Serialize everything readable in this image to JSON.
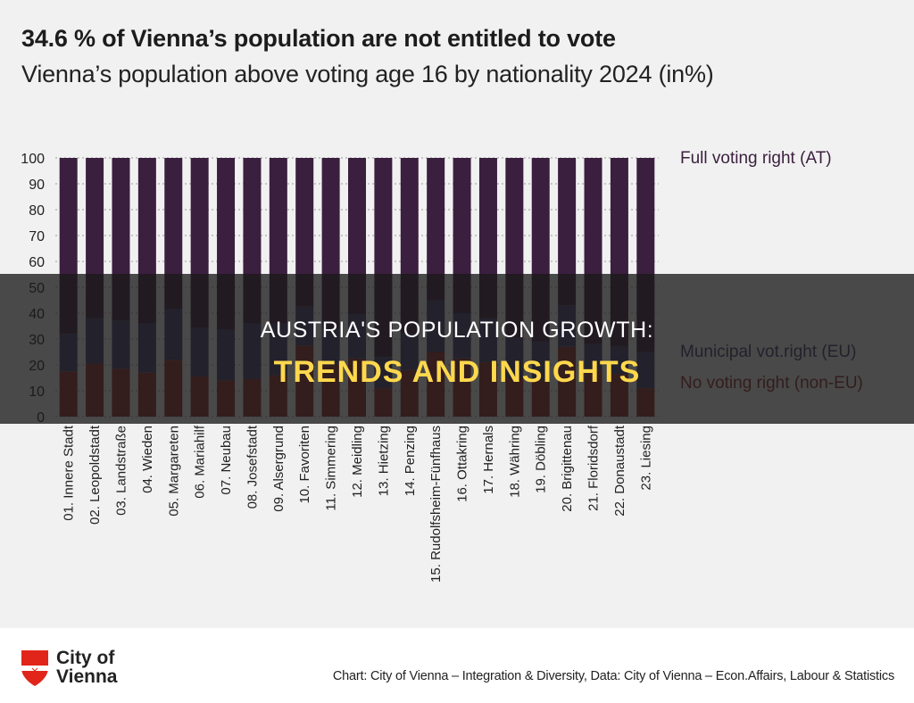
{
  "chart_data": {
    "type": "bar",
    "stacked": true,
    "title": "34.6 % of Vienna’s population are not entitled to vote",
    "subtitle": "Vienna’s population above voting age 16 by nationality 2024 (in%)",
    "ylim": [
      0,
      100
    ],
    "yticks": [
      0,
      10,
      20,
      30,
      40,
      50,
      60,
      70,
      80,
      90,
      100
    ],
    "grid": true,
    "categories": [
      "01. Innere Stadt",
      "02. Leopoldstadt",
      "03. Landstraße",
      "04. Wieden",
      "05. Margareten",
      "06. Mariahilf",
      "07. Neubau",
      "08. Josefstadt",
      "09. Alsergrund",
      "10. Favoriten",
      "11. Simmering",
      "12. Meidling",
      "13. Hietzing",
      "14. Penzing",
      "15. Rudolfsheim-Fünfhaus",
      "16. Ottakring",
      "17. Hernals",
      "18. Währing",
      "19. Döbling",
      "20. Brigittenau",
      "21. Floridsdorf",
      "22. Donaustadt",
      "23. Liesing"
    ],
    "series": [
      {
        "name": "No voting right (non-EU)",
        "color": "#8e2b2b",
        "values": [
          17.5,
          20.5,
          18.5,
          17,
          22,
          15.5,
          14,
          14.5,
          16,
          27.5,
          20,
          22.5,
          11,
          18,
          25,
          22.5,
          21,
          15,
          14,
          27,
          18,
          16.5,
          11
        ]
      },
      {
        "name": "Municipal vot.right (EU)",
        "color": "#433e6e",
        "values": [
          14.5,
          17.5,
          18.5,
          19,
          19.5,
          19,
          19.5,
          21.5,
          20,
          15,
          14,
          17,
          12,
          14,
          20,
          17.5,
          17,
          15.5,
          15,
          16,
          10,
          10.5,
          14
        ]
      },
      {
        "name": "Full voting right (AT)",
        "color": "#3b1f3e",
        "values": [
          68,
          62,
          63,
          64,
          58.5,
          65.5,
          66.5,
          64,
          64,
          57.5,
          66,
          60.5,
          77,
          68,
          55,
          60,
          62,
          69.5,
          71,
          57,
          72,
          73,
          75
        ]
      }
    ],
    "legend_position": "right"
  },
  "overlay": {
    "line1": "AUSTRIA'S POPULATION GROWTH:",
    "line2": "TRENDS AND INSIGHTS"
  },
  "footer": {
    "logo_text": "City of Vienna",
    "source": "Chart: City of Vienna – Integration & Diversity, Data: City of Vienna – Econ.Affairs, Labour & Statistics"
  }
}
